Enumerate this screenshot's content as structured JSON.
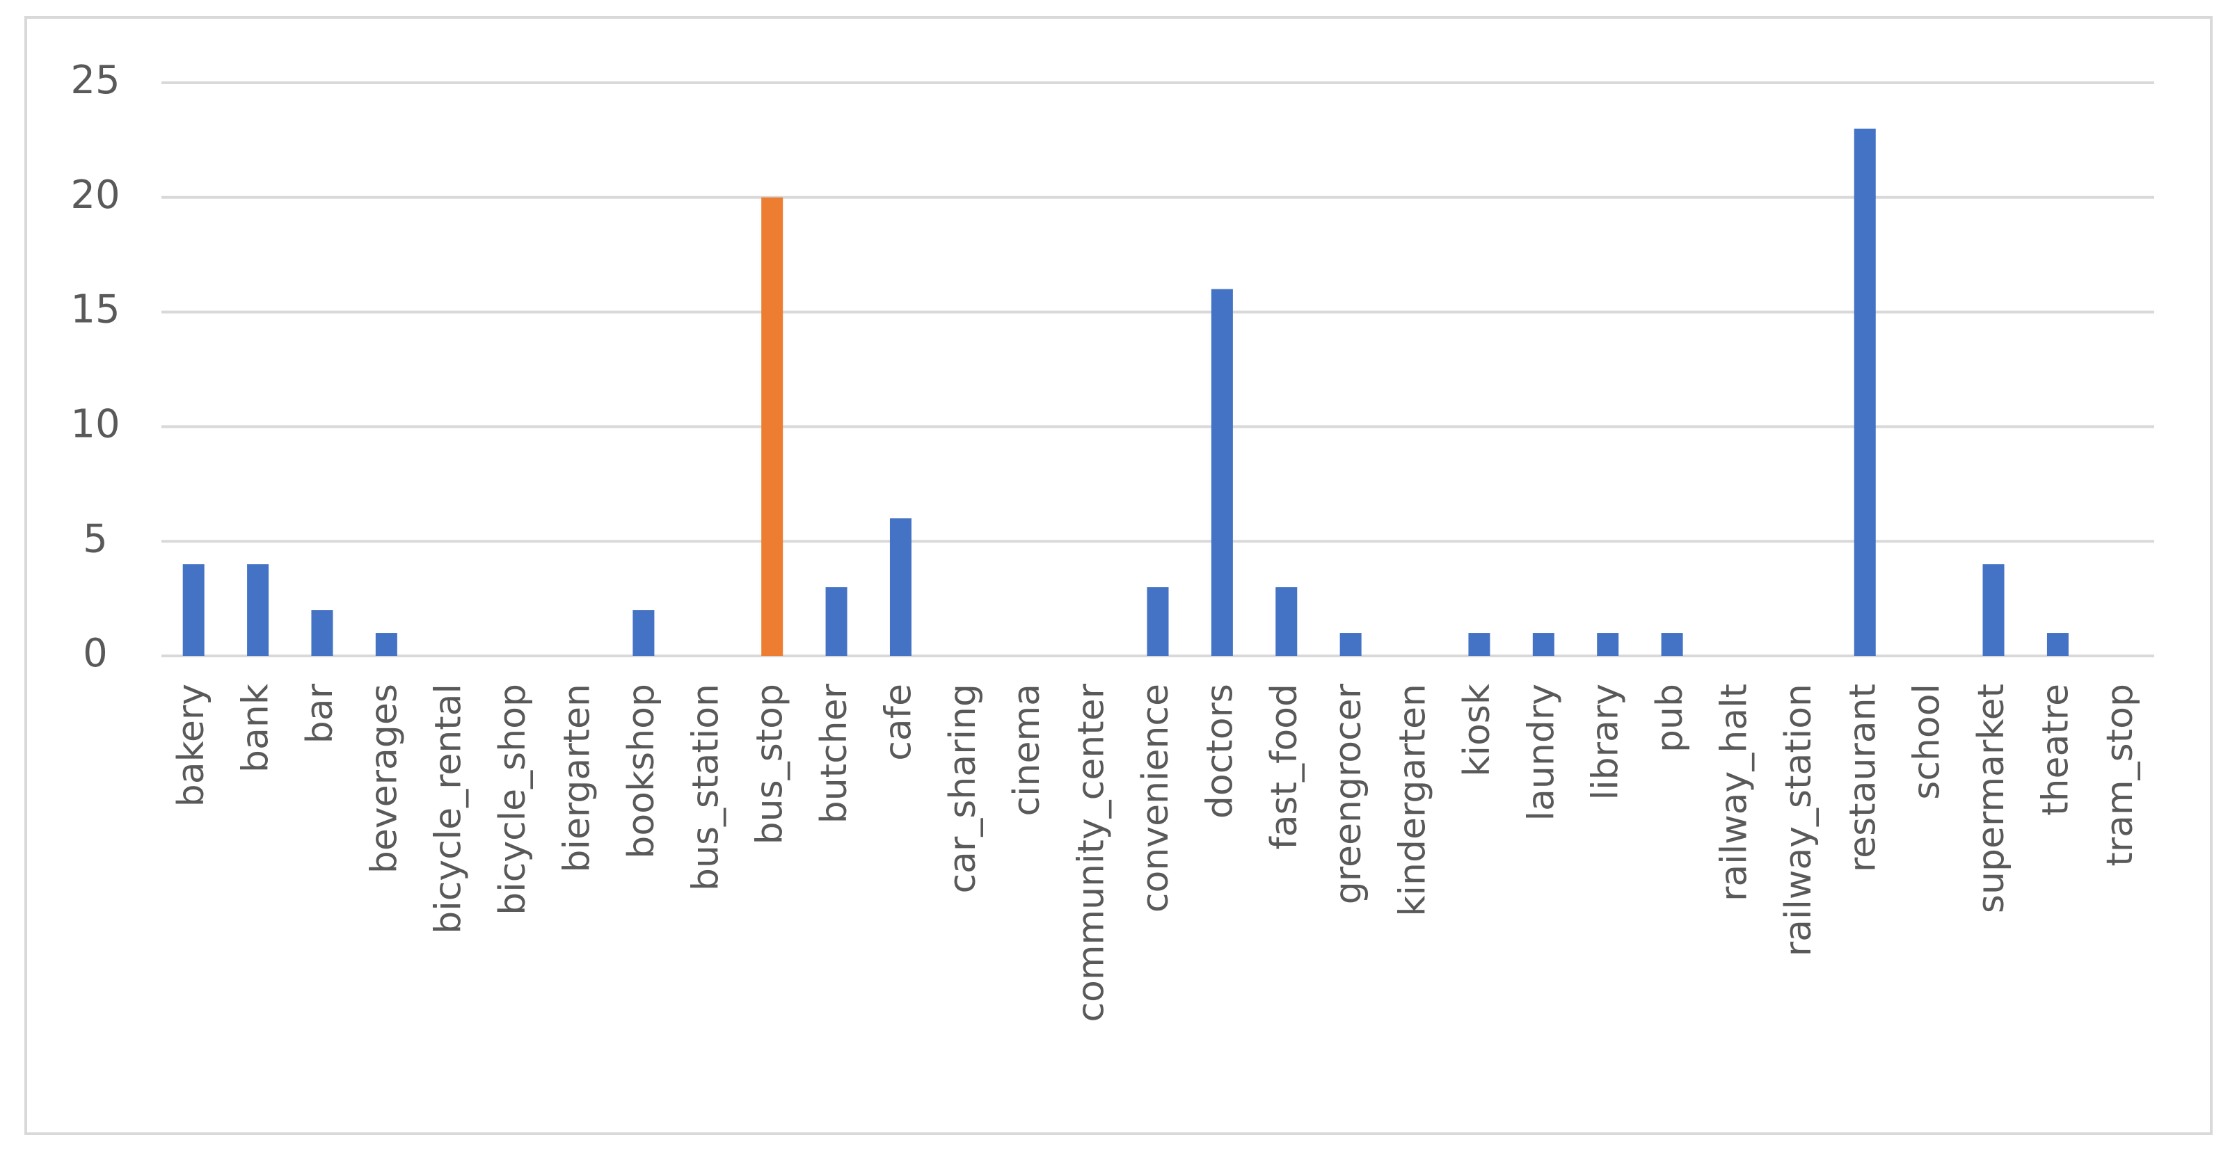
{
  "chart_data": {
    "type": "bar",
    "categories": [
      "bakery",
      "bank",
      "bar",
      "beverages",
      "bicycle_rental",
      "bicycle_shop",
      "biergarten",
      "bookshop",
      "bus_station",
      "bus_stop",
      "butcher",
      "cafe",
      "car_sharing",
      "cinema",
      "community_center",
      "convenience",
      "doctors",
      "fast_food",
      "greengrocer",
      "kindergarten",
      "kiosk",
      "laundry",
      "library",
      "pub",
      "railway_halt",
      "railway_station",
      "restaurant",
      "school",
      "supermarket",
      "theatre",
      "tram_stop"
    ],
    "values": [
      4,
      4,
      2,
      1,
      0,
      0,
      0,
      2,
      0,
      20,
      3,
      6,
      0,
      0,
      0,
      3,
      16,
      3,
      1,
      0,
      1,
      1,
      1,
      1,
      0,
      0,
      23,
      0,
      4,
      1,
      0
    ],
    "colors": [
      "#4472c4",
      "#4472c4",
      "#4472c4",
      "#4472c4",
      "#4472c4",
      "#4472c4",
      "#4472c4",
      "#4472c4",
      "#4472c4",
      "#ed7d31",
      "#4472c4",
      "#4472c4",
      "#4472c4",
      "#4472c4",
      "#4472c4",
      "#4472c4",
      "#4472c4",
      "#4472c4",
      "#4472c4",
      "#4472c4",
      "#4472c4",
      "#4472c4",
      "#4472c4",
      "#4472c4",
      "#4472c4",
      "#4472c4",
      "#4472c4",
      "#4472c4",
      "#4472c4",
      "#4472c4",
      "#4472c4"
    ],
    "ylim": [
      0,
      25
    ],
    "yticks": [
      0,
      5,
      10,
      15,
      20,
      25
    ],
    "grid": true
  }
}
